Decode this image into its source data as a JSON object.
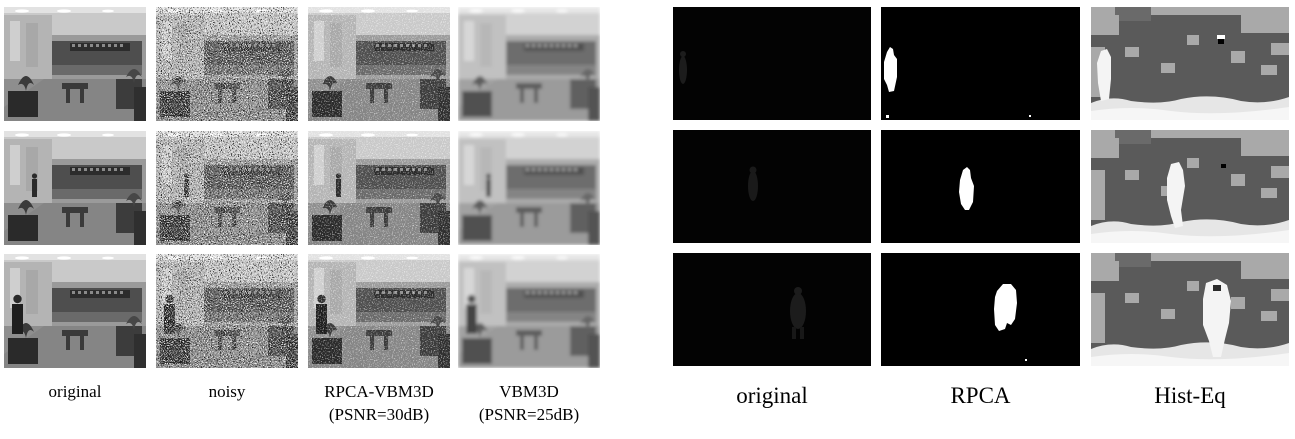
{
  "figure": {
    "left_panel": {
      "captions": [
        {
          "label": "original",
          "sub": ""
        },
        {
          "label": "noisy",
          "sub": ""
        },
        {
          "label": "RPCA-VBM3D",
          "sub": "(PSNR=30dB)"
        },
        {
          "label": "VBM3D",
          "sub": "(PSNR=25dB)"
        }
      ]
    },
    "right_panel": {
      "captions": [
        {
          "label": "original"
        },
        {
          "label": "RPCA"
        },
        {
          "label": "Hist-Eq"
        }
      ]
    }
  }
}
